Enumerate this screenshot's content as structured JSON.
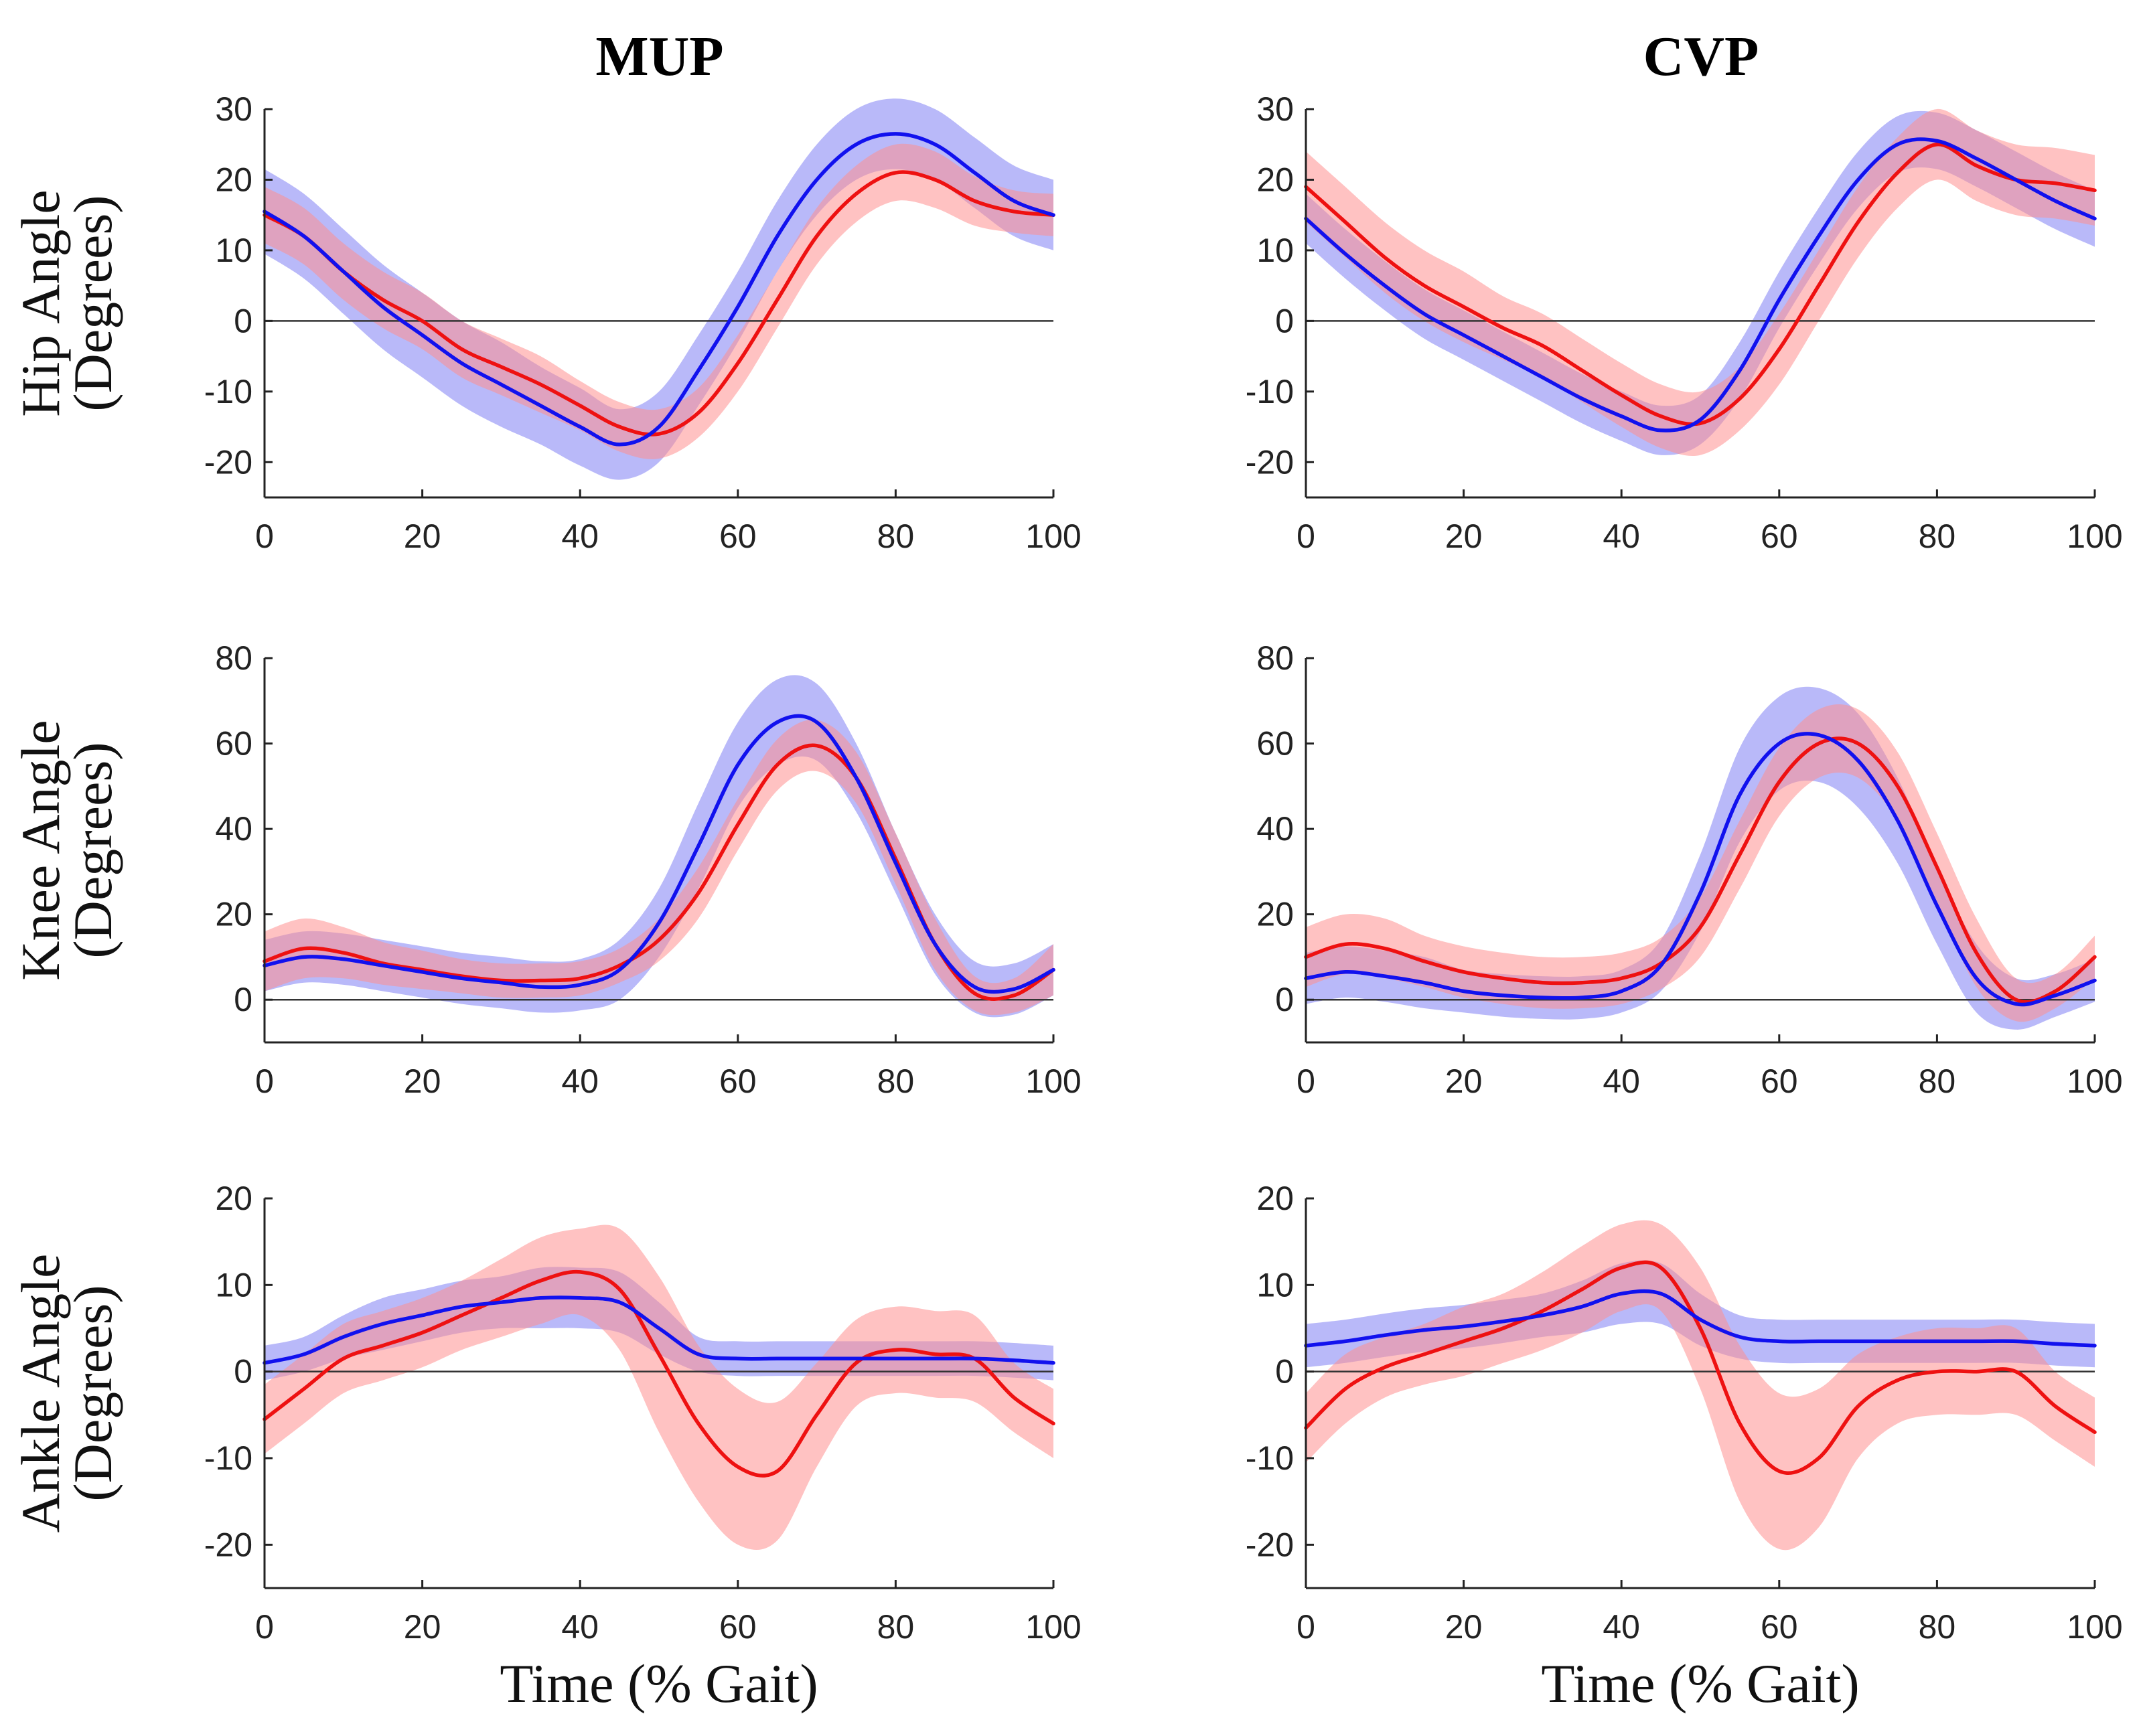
{
  "colors": {
    "series_a": "#ee1111",
    "series_a_band": "#ff8f8f",
    "series_b": "#1111ee",
    "series_b_band": "#8a8af5"
  },
  "columns": [
    "MUP",
    "CVP"
  ],
  "xlabel": "Time (% Gait)",
  "chart_data": [
    {
      "type": "line",
      "column": "MUP",
      "row": "hip",
      "title": "MUP",
      "ylabel": [
        "Hip Angle",
        "(Degrees)"
      ],
      "xlabel": "",
      "xlim": [
        0,
        100
      ],
      "ylim": [
        -25,
        30
      ],
      "xticks": [
        0,
        20,
        40,
        60,
        80,
        100
      ],
      "yticks": [
        -20,
        -10,
        0,
        10,
        20,
        30
      ],
      "x": [
        0,
        5,
        10,
        15,
        20,
        25,
        30,
        35,
        40,
        45,
        50,
        55,
        60,
        65,
        70,
        75,
        80,
        85,
        90,
        95,
        100
      ],
      "series": [
        {
          "name": "red",
          "mean": [
            15,
            12,
            7,
            3,
            0,
            -4,
            -6.5,
            -9,
            -12,
            -15,
            -16,
            -13,
            -6,
            3,
            12,
            18,
            21,
            20,
            17,
            15.5,
            15
          ],
          "sd": [
            4,
            4,
            4,
            4,
            4,
            4,
            4,
            4,
            3.5,
            3.5,
            3.5,
            3.5,
            4,
            4,
            4,
            4,
            4,
            4,
            3.5,
            3,
            3
          ]
        },
        {
          "name": "blue",
          "mean": [
            15.5,
            12,
            7,
            2,
            -2,
            -6,
            -9,
            -12,
            -15,
            -17.5,
            -15,
            -7,
            2,
            12,
            20,
            25,
            26.5,
            25,
            21,
            17,
            15
          ],
          "sd": [
            6,
            6,
            6,
            6,
            6,
            6,
            6,
            5.5,
            5.5,
            5,
            5,
            5,
            5,
            5,
            5,
            5,
            5,
            5,
            5,
            5,
            5
          ]
        }
      ]
    },
    {
      "type": "line",
      "column": "CVP",
      "row": "hip",
      "title": "CVP",
      "ylabel": [
        "Hip Angle",
        "(Degrees)"
      ],
      "xlabel": "",
      "xlim": [
        0,
        100
      ],
      "ylim": [
        -25,
        30
      ],
      "xticks": [
        0,
        20,
        40,
        60,
        80,
        100
      ],
      "yticks": [
        -20,
        -10,
        0,
        10,
        20,
        30
      ],
      "x": [
        0,
        5,
        10,
        15,
        20,
        25,
        30,
        35,
        40,
        45,
        50,
        55,
        60,
        65,
        70,
        75,
        80,
        85,
        90,
        95,
        100
      ],
      "series": [
        {
          "name": "red",
          "mean": [
            19,
            14,
            9,
            5,
            2,
            -1,
            -3.5,
            -7,
            -10.5,
            -13.5,
            -14.5,
            -11,
            -4,
            5,
            14,
            21,
            25,
            22,
            20,
            19.5,
            18.5
          ],
          "sd": [
            5,
            5,
            5,
            5,
            5,
            4.5,
            4.5,
            4.5,
            4.5,
            4.5,
            4.5,
            4.5,
            5,
            5,
            5,
            5,
            5,
            5,
            5,
            5,
            5
          ]
        },
        {
          "name": "blue",
          "mean": [
            14.5,
            9.5,
            5,
            1,
            -2,
            -5,
            -8,
            -11,
            -13.5,
            -15.5,
            -14,
            -7,
            3,
            12,
            20,
            25,
            25.5,
            23,
            20,
            17,
            14.5
          ],
          "sd": [
            3.5,
            3.5,
            3.5,
            3.5,
            3.5,
            3.5,
            3.5,
            3.5,
            3.5,
            3.5,
            3.5,
            4,
            4,
            4,
            4,
            4,
            4,
            4,
            4,
            4,
            4
          ]
        }
      ]
    },
    {
      "type": "line",
      "column": "MUP",
      "row": "knee",
      "title": "",
      "ylabel": [
        "Knee Angle",
        "(Degrees)"
      ],
      "xlabel": "",
      "xlim": [
        0,
        100
      ],
      "ylim": [
        -10,
        80
      ],
      "xticks": [
        0,
        20,
        40,
        60,
        80,
        100
      ],
      "yticks": [
        0,
        20,
        40,
        60,
        80
      ],
      "x": [
        0,
        5,
        10,
        15,
        20,
        25,
        30,
        35,
        40,
        45,
        50,
        55,
        60,
        65,
        70,
        75,
        80,
        85,
        90,
        95,
        100
      ],
      "series": [
        {
          "name": "red",
          "mean": [
            9,
            12,
            11,
            8.5,
            7,
            5.5,
            4.5,
            4.5,
            5,
            8,
            14,
            25,
            41,
            55,
            59.5,
            52,
            33,
            13,
            1.5,
            1,
            7
          ],
          "sd": [
            7,
            7,
            6,
            5,
            4.5,
            4,
            4,
            4,
            4,
            4,
            5,
            6,
            6,
            6,
            6,
            6,
            6,
            6,
            4,
            4,
            6
          ]
        },
        {
          "name": "blue",
          "mean": [
            8,
            10,
            9.5,
            8,
            6.5,
            5,
            4,
            3,
            3.5,
            7,
            18,
            36,
            55,
            65,
            65,
            52,
            32,
            13,
            3,
            2.5,
            7
          ],
          "sd": [
            6,
            6,
            6,
            6,
            6,
            6,
            6,
            6,
            6,
            7,
            8,
            10,
            10,
            10,
            9,
            8,
            7,
            7,
            6,
            6,
            6
          ]
        }
      ]
    },
    {
      "type": "line",
      "column": "CVP",
      "row": "knee",
      "title": "",
      "ylabel": [
        "Knee Angle",
        "(Degrees)"
      ],
      "xlabel": "",
      "xlim": [
        0,
        100
      ],
      "ylim": [
        -10,
        80
      ],
      "xticks": [
        0,
        20,
        40,
        60,
        80,
        100
      ],
      "yticks": [
        0,
        20,
        40,
        60,
        80
      ],
      "x": [
        0,
        5,
        10,
        15,
        20,
        25,
        30,
        35,
        40,
        45,
        50,
        55,
        60,
        65,
        70,
        75,
        80,
        85,
        90,
        95,
        100
      ],
      "series": [
        {
          "name": "red",
          "mean": [
            10,
            13,
            12,
            9,
            6.5,
            5,
            4,
            4,
            5,
            8.5,
            17,
            34,
            51,
            60,
            60,
            50,
            31,
            11,
            0,
            2,
            10
          ],
          "sd": [
            7,
            7,
            7,
            6,
            6,
            6,
            6,
            6,
            6,
            6,
            7,
            8,
            8,
            8,
            8,
            8,
            8,
            8,
            5,
            4,
            5
          ]
        },
        {
          "name": "blue",
          "mean": [
            5,
            6.5,
            5.5,
            4,
            2,
            1,
            0.5,
            0.5,
            2,
            8,
            25,
            48,
            60,
            62,
            56,
            42,
            22,
            5,
            -1,
            1,
            4.5
          ],
          "sd": [
            6,
            6,
            6,
            6,
            5,
            5,
            5,
            5,
            5,
            6,
            9,
            11,
            11,
            11,
            11,
            10,
            9,
            8,
            6,
            5,
            5
          ]
        }
      ]
    },
    {
      "type": "line",
      "column": "MUP",
      "row": "ankle",
      "title": "",
      "ylabel": [
        "Ankle Angle",
        "(Degrees)"
      ],
      "xlabel": "Time (% Gait)",
      "xlim": [
        0,
        100
      ],
      "ylim": [
        -25,
        20
      ],
      "xticks": [
        0,
        20,
        40,
        60,
        80,
        100
      ],
      "yticks": [
        -20,
        -10,
        0,
        10,
        20
      ],
      "x": [
        0,
        5,
        10,
        15,
        20,
        25,
        30,
        35,
        40,
        45,
        50,
        55,
        60,
        65,
        70,
        75,
        80,
        85,
        90,
        95,
        100
      ],
      "series": [
        {
          "name": "red",
          "mean": [
            -5.5,
            -2,
            1.5,
            3,
            4.5,
            6.5,
            8.5,
            10.5,
            11.5,
            9.5,
            2,
            -6,
            -11,
            -11.5,
            -5,
            1,
            2.5,
            2,
            1.5,
            -3,
            -6
          ],
          "sd": [
            4,
            4,
            4,
            4,
            4,
            4,
            4.5,
            5,
            5,
            7,
            9,
            9,
            9,
            8,
            6,
            5,
            5,
            5,
            5,
            4,
            4
          ]
        },
        {
          "name": "blue",
          "mean": [
            1,
            2,
            4,
            5.5,
            6.5,
            7.5,
            8,
            8.5,
            8.5,
            8,
            5,
            2,
            1.5,
            1.5,
            1.5,
            1.5,
            1.5,
            1.5,
            1.5,
            1.3,
            1
          ],
          "sd": [
            2,
            2,
            2.5,
            3,
            3,
            3,
            3,
            3.5,
            3.5,
            3.5,
            3,
            2,
            2,
            2,
            2,
            2,
            2,
            2,
            2,
            2,
            2
          ]
        }
      ]
    },
    {
      "type": "line",
      "column": "CVP",
      "row": "ankle",
      "title": "",
      "ylabel": [
        "Ankle Angle",
        "(Degrees)"
      ],
      "xlabel": "Time (% Gait)",
      "xlim": [
        0,
        100
      ],
      "ylim": [
        -25,
        20
      ],
      "xticks": [
        0,
        20,
        40,
        60,
        80,
        100
      ],
      "yticks": [
        -20,
        -10,
        0,
        10,
        20
      ],
      "x": [
        0,
        5,
        10,
        15,
        20,
        25,
        30,
        35,
        40,
        45,
        50,
        55,
        60,
        65,
        70,
        75,
        80,
        85,
        90,
        95,
        100
      ],
      "series": [
        {
          "name": "red",
          "mean": [
            -6.5,
            -2,
            0.5,
            2,
            3.5,
            5,
            7,
            9.5,
            12,
            12,
            5,
            -6,
            -11.5,
            -10,
            -4,
            -1,
            0,
            0,
            0,
            -4,
            -7
          ],
          "sd": [
            4,
            4,
            3.5,
            3.5,
            4,
            4,
            4.5,
            5,
            5,
            5,
            7,
            9,
            9,
            8,
            6,
            5,
            5,
            5,
            5,
            4,
            4
          ]
        },
        {
          "name": "blue",
          "mean": [
            3,
            3.5,
            4.2,
            4.8,
            5.2,
            5.8,
            6.5,
            7.5,
            9,
            9,
            6,
            4,
            3.5,
            3.5,
            3.5,
            3.5,
            3.5,
            3.5,
            3.5,
            3.2,
            3
          ],
          "sd": [
            2.5,
            2.5,
            2.5,
            2.5,
            2.5,
            2.5,
            2.5,
            3,
            3.5,
            3.5,
            3,
            2.5,
            2.5,
            2.5,
            2.5,
            2.5,
            2.5,
            2.5,
            2.5,
            2.5,
            2.5
          ]
        }
      ]
    }
  ]
}
